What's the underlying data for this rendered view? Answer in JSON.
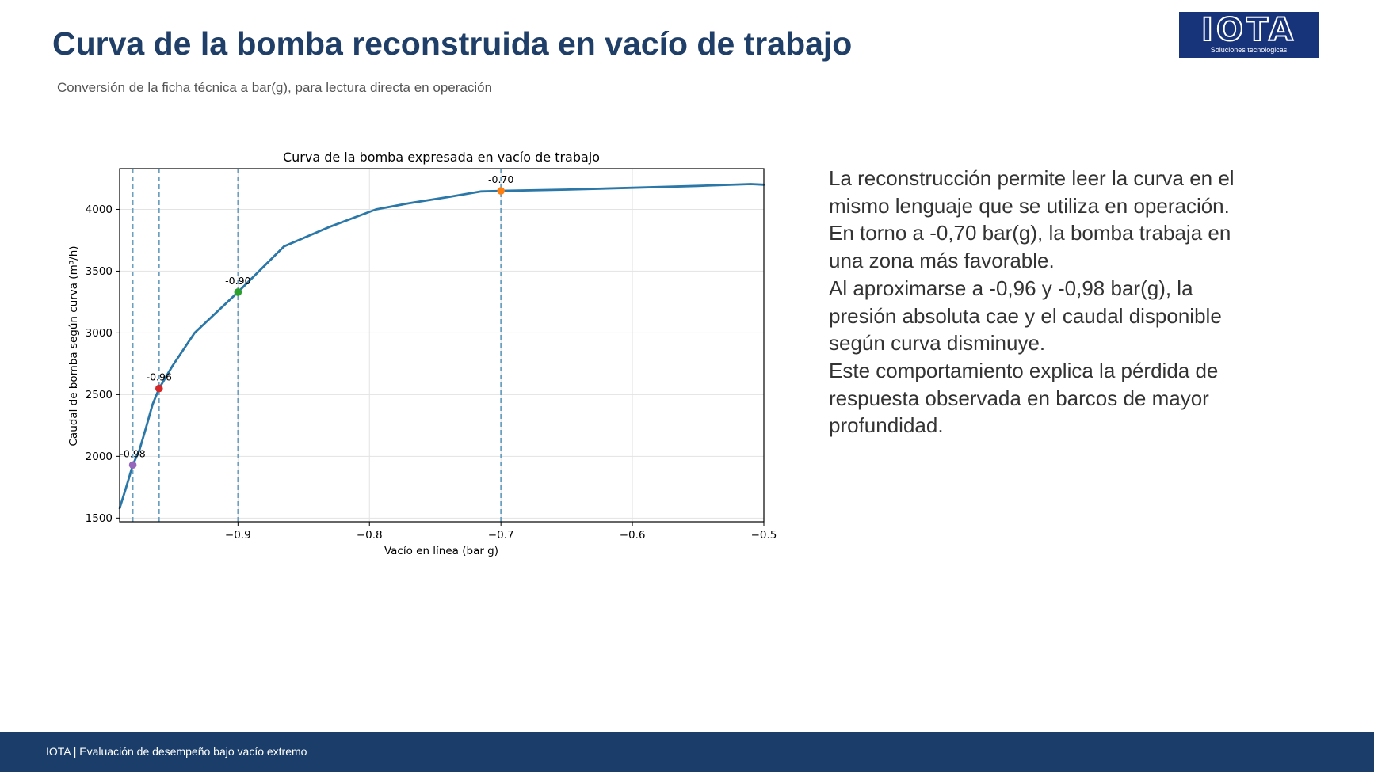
{
  "header": {
    "title": "Curva de la bomba reconstruida en vacío de trabajo",
    "subtitle": "Conversión de la ficha técnica a bar(g), para lectura directa en operación"
  },
  "logo": {
    "word": "IOTA",
    "tagline": "Soluciones tecnologicas"
  },
  "body": {
    "paragraphs": [
      "La reconstrucción permite leer la curva en el mismo lenguaje que se utiliza en operación.",
      "En torno a -0,70 bar(g), la bomba trabaja en una zona más favorable.",
      "Al aproximarse a -0,96 y -0,98 bar(g), la presión absoluta cae y el caudal disponible según curva disminuye.",
      "Este comportamiento explica la pérdida de respuesta observada en barcos de mayor profundidad."
    ]
  },
  "footer": {
    "text": "IOTA | Evaluación de desempeño bajo vacío extremo"
  },
  "chart_data": {
    "type": "line",
    "title": "Curva de la bomba expresada en vacío de trabajo",
    "xlabel": "Vacío en línea (bar g)",
    "ylabel": "Caudal de bomba según curva (m³/h)",
    "xlim": [
      -0.99,
      -0.5
    ],
    "ylim": [
      1470,
      4330
    ],
    "x_ticks": [
      -0.9,
      -0.8,
      -0.7,
      -0.6,
      -0.5
    ],
    "x_tick_labels": [
      "−0.9",
      "−0.8",
      "−0.7",
      "−0.6",
      "−0.5"
    ],
    "y_ticks": [
      1500,
      2000,
      2500,
      3000,
      3500,
      4000
    ],
    "y_tick_labels": [
      "1500",
      "2000",
      "2500",
      "3000",
      "3500",
      "4000"
    ],
    "grid": true,
    "series": [
      {
        "color": "#2a77a8",
        "x": [
          -0.99,
          -0.985,
          -0.98,
          -0.975,
          -0.97,
          -0.965,
          -0.96,
          -0.95,
          -0.933,
          -0.9,
          -0.865,
          -0.83,
          -0.795,
          -0.77,
          -0.74,
          -0.715,
          -0.7,
          -0.65,
          -0.6,
          -0.55,
          -0.51,
          -0.5
        ],
        "y": [
          1580,
          1750,
          1930,
          2050,
          2230,
          2420,
          2550,
          2730,
          3000,
          3330,
          3700,
          3860,
          4000,
          4050,
          4100,
          4145,
          4150,
          4160,
          4175,
          4190,
          4205,
          4200
        ]
      }
    ],
    "reference_lines": [
      {
        "x": -0.98,
        "color": "#6a9fbf"
      },
      {
        "x": -0.96,
        "color": "#6a9fbf"
      },
      {
        "x": -0.9,
        "color": "#6a9fbf"
      },
      {
        "x": -0.7,
        "color": "#6a9fbf"
      }
    ],
    "markers": [
      {
        "x": -0.98,
        "y": 1930,
        "label": "-0.98",
        "color": "#9467bd"
      },
      {
        "x": -0.96,
        "y": 2550,
        "label": "-0.96",
        "color": "#d62728"
      },
      {
        "x": -0.9,
        "y": 3330,
        "label": "-0.90",
        "color": "#2ca02c"
      },
      {
        "x": -0.7,
        "y": 4150,
        "label": "-0.70",
        "color": "#ff7f0e"
      }
    ]
  }
}
